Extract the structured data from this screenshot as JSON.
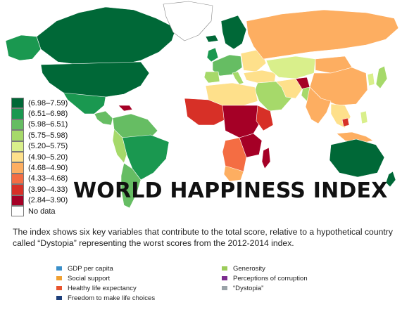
{
  "title": "WORLD HAPPINESS INDEX",
  "description": "The index shows six key variables that contribute to the total score, relative to a hypothetical country called “Dystopia” representing the worst scores from the 2012-2014 index.",
  "legend": [
    {
      "label": "(6.98–7.59)",
      "color": "#006837"
    },
    {
      "label": "(6.51–6.98)",
      "color": "#1a9850"
    },
    {
      "label": "(5.98–6.51)",
      "color": "#66bd63"
    },
    {
      "label": "(5.75–5.98)",
      "color": "#a6d96a"
    },
    {
      "label": "(5.20–5.75)",
      "color": "#d9ef8b"
    },
    {
      "label": "(4.90–5.20)",
      "color": "#fee08b"
    },
    {
      "label": "(4.68–4.90)",
      "color": "#fdae61"
    },
    {
      "label": "(4.33–4.68)",
      "color": "#f46d43"
    },
    {
      "label": "(3.90–4.33)",
      "color": "#d73027"
    },
    {
      "label": "(2.84–3.90)",
      "color": "#a50026"
    },
    {
      "label": "No data",
      "color": "#ffffff"
    }
  ],
  "variables": {
    "left": [
      {
        "label": "GDP per capita",
        "color": "#3a8fc9"
      },
      {
        "label": "Social support",
        "color": "#f0a032"
      },
      {
        "label": "Healthy life expectancy",
        "color": "#e8532e"
      },
      {
        "label": "Freedom to make life choices",
        "color": "#1e3f7a"
      }
    ],
    "right": [
      {
        "label": "Generosity",
        "color": "#9ccc5a"
      },
      {
        "label": "Perceptions of corruption",
        "color": "#7b2d8e"
      },
      {
        "label": "“Dystopia”",
        "color": "#9aa3a8"
      }
    ]
  }
}
